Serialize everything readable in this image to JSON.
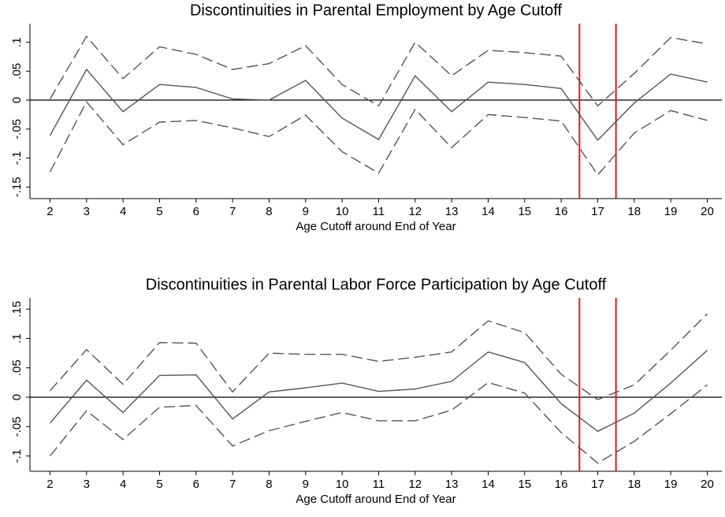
{
  "chart_data": [
    {
      "type": "line",
      "title": "Discontinuities in Parental Employment by Age Cutoff",
      "x_label": "Age Cutoff around End of Year",
      "x": [
        2,
        3,
        4,
        5,
        6,
        7,
        8,
        9,
        10,
        11,
        12,
        13,
        14,
        15,
        16,
        17,
        18,
        19,
        20
      ],
      "series": [
        {
          "color": "#555555",
          "dash": false,
          "values": [
            -0.061,
            0.053,
            -0.02,
            0.027,
            0.022,
            0.002,
            0,
            0.034,
            -0.031,
            -0.068,
            0.042,
            -0.02,
            0.031,
            0.027,
            0.02,
            -0.069,
            -0.005,
            0.045,
            0.031
          ]
        },
        {
          "color": "#555555",
          "dash": true,
          "values": [
            0.002,
            0.11,
            0.037,
            0.092,
            0.079,
            0.053,
            0.063,
            0.094,
            0.027,
            -0.01,
            0.1,
            0.042,
            0.086,
            0.082,
            0.076,
            -0.01,
            0.046,
            0.108,
            0.097
          ]
        },
        {
          "color": "#555555",
          "dash": true,
          "values": [
            -0.124,
            -0.003,
            -0.077,
            -0.038,
            -0.035,
            -0.048,
            -0.063,
            -0.026,
            -0.089,
            -0.126,
            -0.016,
            -0.082,
            -0.025,
            -0.03,
            -0.036,
            -0.129,
            -0.057,
            -0.018,
            -0.035
          ]
        }
      ],
      "xlim": [
        1.45,
        20.4
      ],
      "xticks": [
        2,
        3,
        4,
        5,
        6,
        7,
        8,
        9,
        10,
        11,
        12,
        13,
        14,
        15,
        16,
        17,
        18,
        19,
        20
      ],
      "ylim": [
        -0.17,
        0.132
      ],
      "yticks": [
        {
          "value": -0.15,
          "label": "-.15"
        },
        {
          "value": -0.1,
          "label": "-.1"
        },
        {
          "value": -0.05,
          "label": "-.05"
        },
        0,
        {
          "value": 0.05,
          "label": ".05"
        },
        {
          "value": 0.1,
          "label": ".1"
        }
      ],
      "hline": 0,
      "vlines": [
        16.5,
        17.5
      ],
      "vline_color": "#e8160c"
    },
    {
      "type": "line",
      "title": "Discontinuities in Parental Labor Force Participation by Age Cutoff",
      "x_label": "Age Cutoff around End of Year",
      "x": [
        2,
        3,
        4,
        5,
        6,
        7,
        8,
        9,
        10,
        11,
        12,
        13,
        14,
        15,
        16,
        17,
        18,
        19,
        20
      ],
      "series": [
        {
          "color": "#555555",
          "dash": false,
          "values": [
            -0.044,
            0.029,
            -0.026,
            0.037,
            0.038,
            -0.037,
            0.009,
            0.016,
            0.024,
            0.01,
            0.014,
            0.027,
            0.077,
            0.059,
            -0.011,
            -0.058,
            -0.027,
            0.024,
            0.08
          ]
        },
        {
          "color": "#555555",
          "dash": true,
          "values": [
            0.011,
            0.081,
            0.022,
            0.093,
            0.092,
            0.009,
            0.075,
            0.073,
            0.073,
            0.061,
            0.068,
            0.077,
            0.13,
            0.11,
            0.039,
            -0.004,
            0.021,
            0.08,
            0.142
          ]
        },
        {
          "color": "#555555",
          "dash": true,
          "values": [
            -0.1,
            -0.023,
            -0.072,
            -0.017,
            -0.014,
            -0.083,
            -0.057,
            -0.041,
            -0.026,
            -0.04,
            -0.04,
            -0.022,
            0.025,
            0.007,
            -0.06,
            -0.112,
            -0.075,
            -0.028,
            0.021
          ]
        }
      ],
      "xlim": [
        1.45,
        20.4
      ],
      "xticks": [
        2,
        3,
        4,
        5,
        6,
        7,
        8,
        9,
        10,
        11,
        12,
        13,
        14,
        15,
        16,
        17,
        18,
        19,
        20
      ],
      "ylim": [
        -0.126,
        0.169
      ],
      "yticks": [
        {
          "value": -0.1,
          "label": "-.1"
        },
        {
          "value": -0.05,
          "label": "-.05"
        },
        0,
        {
          "value": 0.05,
          "label": ".05"
        },
        {
          "value": 0.1,
          "label": ".1"
        },
        {
          "value": 0.15,
          "label": ".15"
        }
      ],
      "hline": 0,
      "vlines": [
        16.5,
        17.5
      ],
      "vline_color": "#e8160c"
    }
  ]
}
